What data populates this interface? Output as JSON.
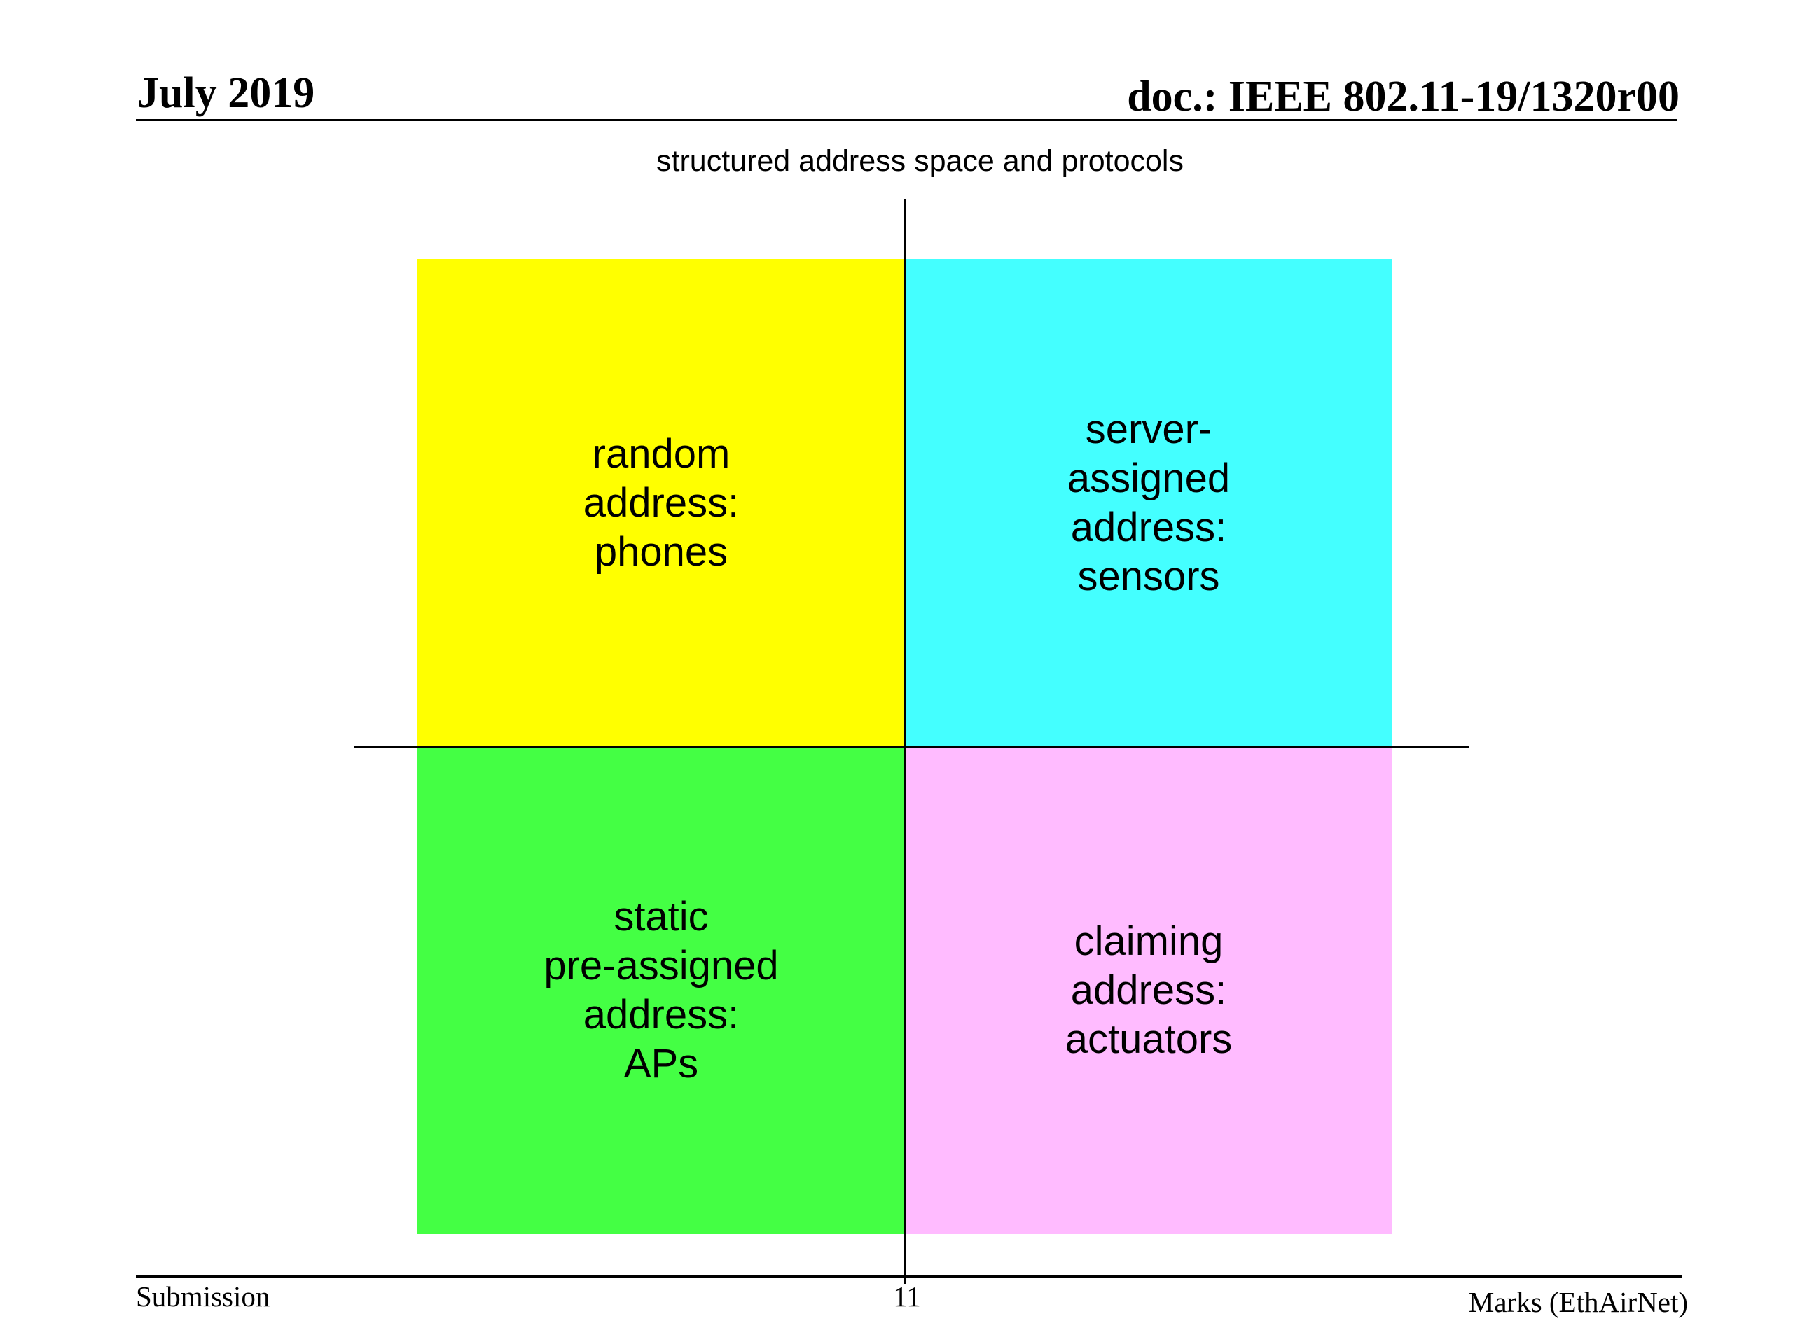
{
  "header": {
    "date": "July 2019",
    "doc_id": "doc.: IEEE 802.11-19/1320r00"
  },
  "diagram": {
    "title": "structured address space and protocols",
    "quadrants": {
      "top_left": {
        "label": "random\naddress:\nphones",
        "color": "#ffff00"
      },
      "top_right": {
        "label": "server-\nassigned\naddress:\nsensors",
        "color": "#44ffff"
      },
      "bottom_left": {
        "label": "static\npre-assigned\naddress:\nAPs",
        "color": "#44ff44"
      },
      "bottom_right": {
        "label": "claiming\naddress:\nactuators",
        "color": "#ffbbff"
      }
    }
  },
  "footer": {
    "left": "Submission",
    "page_number": "11",
    "right": "Marks (EthAirNet)"
  }
}
